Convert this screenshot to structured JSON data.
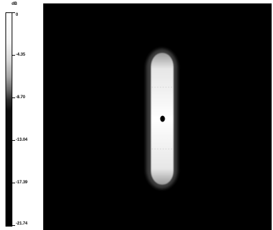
{
  "chart_data": {
    "type": "heatmap",
    "colorbar": {
      "unit": "dB",
      "min": -21.74,
      "max": 0,
      "ticks": [
        "0",
        "-4.35",
        "-8.70",
        "-13.04",
        "-17.39",
        "-21.74"
      ],
      "colors": [
        "#ffffff",
        "#000000"
      ]
    },
    "intensity_map": {
      "shape": "vertical-rounded-ellipse",
      "peak_db": 0,
      "background_db": -21.74,
      "features": [
        "bright elongated vertical region",
        "dark dot near center"
      ]
    }
  }
}
